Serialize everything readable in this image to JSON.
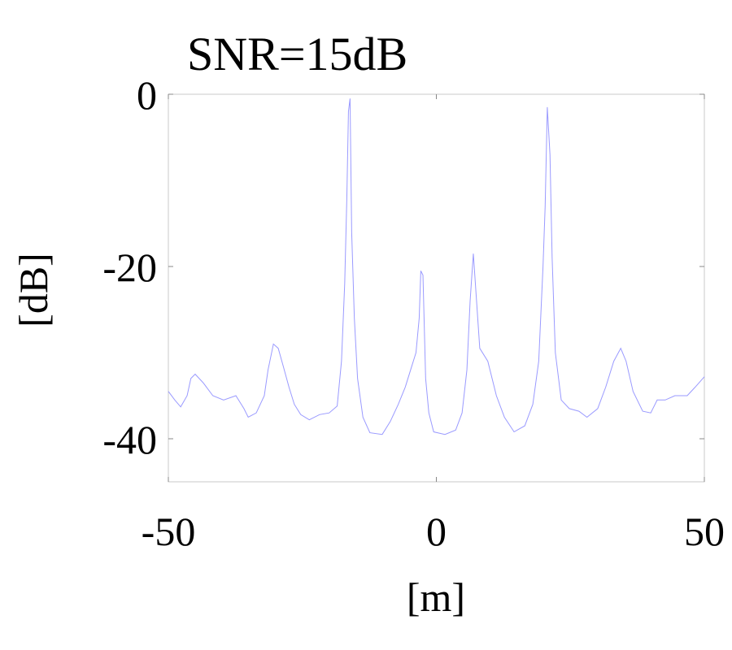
{
  "chart_data": {
    "type": "line",
    "title": "SNR=15dB",
    "x_label": "[m]",
    "y_label": "[dB]",
    "x": [
      -50,
      -48.8,
      -47.7,
      -46.5,
      -45.8,
      -45,
      -43.5,
      -41.7,
      -39.7,
      -37.4,
      -35.9,
      -35.1,
      -33.6,
      -32.1,
      -31.4,
      -30.4,
      -29.5,
      -28.6,
      -27.5,
      -26.5,
      -25.3,
      -23.7,
      -21.8,
      -20,
      -18.5,
      -17.7,
      -17.1,
      -16.7,
      -16.4,
      -16.1,
      -15.8,
      -15.3,
      -14.7,
      -13.7,
      -12.4,
      -10.1,
      -8.6,
      -7.1,
      -5.8,
      -4.8,
      -3.8,
      -3.2,
      -2.9,
      -2.5,
      -2,
      -1.4,
      -0.5,
      1.6,
      3.6,
      4.8,
      5.7,
      6.3,
      6.9,
      7.5,
      8.1,
      9.6,
      11.2,
      12.7,
      14.5,
      16.5,
      18,
      19.1,
      19.9,
      20.3,
      20.7,
      21.2,
      21.6,
      22.2,
      23.3,
      24.8,
      26.6,
      28.1,
      30.1,
      31.6,
      33.1,
      34.4,
      35.4,
      36.7,
      38.5,
      40,
      41.2,
      42.7,
      44.5,
      46.8,
      48.3,
      50
    ],
    "series": [
      {
        "color": "#9a9aff",
        "values": [
          -34.5,
          -35.5,
          -36.3,
          -35,
          -33,
          -32.5,
          -33.5,
          -35,
          -35.5,
          -35,
          -36.5,
          -37.5,
          -37,
          -35,
          -32,
          -29,
          -29.5,
          -31.5,
          -34,
          -36,
          -37.2,
          -37.8,
          -37.2,
          -37,
          -36.2,
          -31,
          -22,
          -12,
          -2,
          -0.5,
          -16,
          -26,
          -33,
          -37.5,
          -39.3,
          -39.5,
          -38,
          -36,
          -34,
          -32,
          -30,
          -26,
          -20.5,
          -21,
          -33,
          -37,
          -39.2,
          -39.5,
          -39,
          -37,
          -32,
          -24,
          -18.5,
          -24,
          -29.5,
          -31,
          -35,
          -37.5,
          -39.2,
          -38.5,
          -36,
          -31,
          -20,
          -13,
          -1.5,
          -7,
          -19,
          -30,
          -35.5,
          -36.5,
          -36.8,
          -37.5,
          -36.5,
          -34,
          -31,
          -29.5,
          -31,
          -34.5,
          -36.8,
          -37,
          -35.5,
          -35.5,
          -35,
          -35,
          -34,
          -32.8
        ]
      }
    ],
    "xlim": [
      -50,
      50
    ],
    "xticks": [
      -50,
      0,
      50
    ],
    "ylim": [
      -45,
      0
    ],
    "yticks": [
      0,
      -20,
      -40
    ]
  }
}
